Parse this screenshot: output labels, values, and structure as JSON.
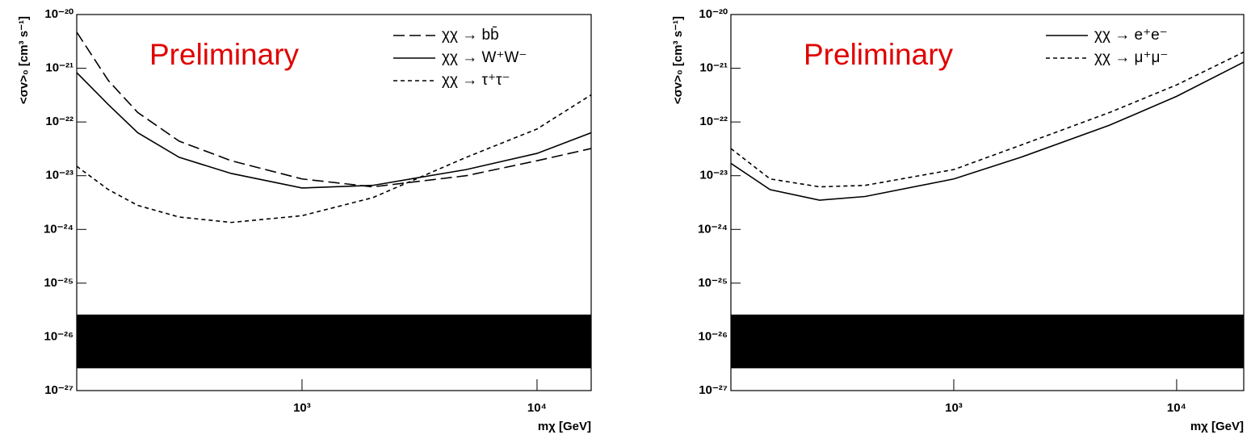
{
  "chart_data": [
    {
      "type": "line",
      "xscale": "log",
      "yscale": "log",
      "legend": "upper right",
      "y_label": "<σv>₀ [cm³ s⁻¹]",
      "x_label": "mχ [GeV]",
      "annotation": "Preliminary",
      "annotation_color": "#e00000",
      "xlim": [
        110,
        17000
      ],
      "ylim": [
        1e-27,
        1e-20
      ],
      "xticks": [
        {
          "value": 1000,
          "label": "10³"
        },
        {
          "value": 10000,
          "label": "10⁴"
        }
      ],
      "yticks": [
        {
          "value": 1e-27,
          "label": "10⁻²⁷"
        },
        {
          "value": 1e-26,
          "label": "10⁻²⁶"
        },
        {
          "value": 1e-25,
          "label": "10⁻²⁵"
        },
        {
          "value": 1e-24,
          "label": "10⁻²⁴"
        },
        {
          "value": 1e-23,
          "label": "10⁻²³"
        },
        {
          "value": 1e-22,
          "label": "10⁻²²"
        },
        {
          "value": 1e-21,
          "label": "10⁻²¹"
        },
        {
          "value": 1e-20,
          "label": "10⁻²⁰"
        }
      ],
      "x": [
        110,
        150,
        200,
        300,
        500,
        1000,
        2000,
        5000,
        10000,
        17000
      ],
      "band": {
        "color": "#000000",
        "values": [
          2.6e-27,
          2.6e-26
        ]
      },
      "series": [
        {
          "name": "χχ → bb̄",
          "color": "#000000",
          "dash": "14,6",
          "values": [
            4.7e-21,
            5.9e-22,
            1.5e-22,
            4.4e-23,
            1.9e-23,
            8.7e-24,
            6.2e-24,
            1e-23,
            1.9e-23,
            3.2e-23
          ]
        },
        {
          "name": "χχ → W⁺W⁻",
          "color": "#000000",
          "dash": "none",
          "values": [
            8.3e-22,
            2.1e-22,
            6.3e-23,
            2.2e-23,
            1.1e-23,
            5.9e-24,
            6.6e-24,
            1.3e-23,
            2.6e-23,
            6.3e-23
          ]
        },
        {
          "name": "χχ → τ⁺τ⁻",
          "color": "#000000",
          "dash": "5,4",
          "values": [
            1.5e-23,
            5.5e-24,
            2.8e-24,
            1.7e-24,
            1.35e-24,
            1.8e-24,
            3.9e-24,
            2.2e-23,
            7.4e-23,
            3.2e-22
          ]
        }
      ]
    },
    {
      "type": "line",
      "xscale": "log",
      "yscale": "log",
      "legend": "upper right",
      "y_label": "<σv>₀ [cm³ s⁻¹]",
      "x_label": "mχ [GeV]",
      "annotation": "Preliminary",
      "annotation_color": "#e00000",
      "xlim": [
        100,
        20000
      ],
      "ylim": [
        1e-27,
        1e-20
      ],
      "xticks": [
        {
          "value": 1000,
          "label": "10³"
        },
        {
          "value": 10000,
          "label": "10⁴"
        }
      ],
      "yticks": [
        {
          "value": 1e-27,
          "label": "10⁻²⁷"
        },
        {
          "value": 1e-26,
          "label": "10⁻²⁶"
        },
        {
          "value": 1e-25,
          "label": "10⁻²⁵"
        },
        {
          "value": 1e-24,
          "label": "10⁻²⁴"
        },
        {
          "value": 1e-23,
          "label": "10⁻²³"
        },
        {
          "value": 1e-22,
          "label": "10⁻²²"
        },
        {
          "value": 1e-21,
          "label": "10⁻²¹"
        },
        {
          "value": 1e-20,
          "label": "10⁻²⁰"
        }
      ],
      "x": [
        100,
        150,
        250,
        400,
        1000,
        2000,
        5000,
        10000,
        20000
      ],
      "band": {
        "color": "#000000",
        "values": [
          2.6e-27,
          2.6e-26
        ]
      },
      "series": [
        {
          "name": "χχ → e⁺e⁻",
          "color": "#000000",
          "dash": "none",
          "values": [
            1.7e-23,
            5.5e-24,
            3.5e-24,
            4.1e-24,
            8.7e-24,
            2.2e-23,
            8.7e-23,
            3e-22,
            1.3e-21
          ]
        },
        {
          "name": "χχ → μ⁺μ⁻",
          "color": "#000000",
          "dash": "5,4",
          "values": [
            3.2e-23,
            8.7e-24,
            6.2e-24,
            6.6e-24,
            1.3e-23,
            3.7e-23,
            1.5e-22,
            4.9e-22,
            2e-21
          ]
        }
      ]
    }
  ]
}
